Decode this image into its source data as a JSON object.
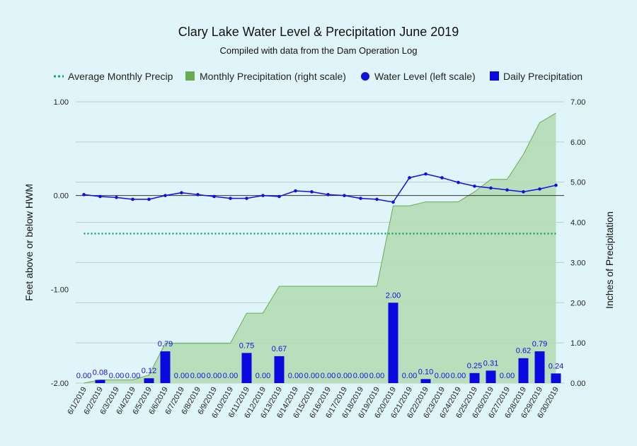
{
  "chart_data": {
    "type": "bar",
    "title": "Clary Lake Water Level & Precipitation June 2019",
    "subtitle": "Compiled with data from the Dam Operation Log",
    "ylabel_left": "Feet above or below HWM",
    "ylabel_right": "Inches of Precipitation",
    "ylim_left": [
      -2.0,
      1.0
    ],
    "ylim_right": [
      0.0,
      7.0
    ],
    "yticks_left": [
      "1.00",
      "0.00",
      "-1.00",
      "-2.00"
    ],
    "yticks_right": [
      "7.00",
      "6.00",
      "5.00",
      "4.00",
      "3.00",
      "2.00",
      "1.00",
      "0.00"
    ],
    "legend_position": "top",
    "grid": true,
    "categories": [
      "6/1/2019",
      "6/2/2019",
      "6/3/2019",
      "6/4/2019",
      "6/5/2019",
      "6/6/2019",
      "6/7/2019",
      "6/8/2019",
      "6/9/2019",
      "6/10/2019",
      "6/11/2019",
      "6/12/2019",
      "6/13/2019",
      "6/14/2019",
      "6/15/2019",
      "6/16/2019",
      "6/17/2019",
      "6/18/2019",
      "6/19/2019",
      "6/20/2019",
      "6/21/2019",
      "6/22/2019",
      "6/23/2019",
      "6/24/2019",
      "6/25/2019",
      "6/26/2019",
      "6/27/2019",
      "6/28/2019",
      "6/29/2019",
      "6/30/2019"
    ],
    "series": [
      {
        "name": "Average Monthly Precip",
        "kind": "dotted-line",
        "axis": "right",
        "color": "#1aa35a",
        "values": [
          3.72,
          3.72,
          3.72,
          3.72,
          3.72,
          3.72,
          3.72,
          3.72,
          3.72,
          3.72,
          3.72,
          3.72,
          3.72,
          3.72,
          3.72,
          3.72,
          3.72,
          3.72,
          3.72,
          3.72,
          3.72,
          3.72,
          3.72,
          3.72,
          3.72,
          3.72,
          3.72,
          3.72,
          3.72,
          3.72
        ]
      },
      {
        "name": "Monthly Precipitation (right scale)",
        "kind": "area",
        "axis": "right",
        "color": "#6aaa50",
        "values": [
          0.0,
          0.08,
          0.08,
          0.08,
          0.2,
          0.99,
          0.99,
          0.99,
          0.99,
          0.99,
          1.74,
          1.74,
          2.41,
          2.41,
          2.41,
          2.41,
          2.41,
          2.41,
          2.41,
          4.41,
          4.41,
          4.51,
          4.51,
          4.51,
          4.76,
          5.07,
          5.07,
          5.69,
          6.48,
          6.72
        ]
      },
      {
        "name": "Water Level (left scale)",
        "kind": "line",
        "axis": "left",
        "color": "#1010e0",
        "values": [
          0.01,
          -0.01,
          -0.02,
          -0.04,
          -0.04,
          0.0,
          0.03,
          0.01,
          -0.01,
          -0.03,
          -0.03,
          0.0,
          -0.01,
          0.05,
          0.04,
          0.01,
          0.0,
          -0.03,
          -0.04,
          -0.07,
          0.19,
          0.23,
          0.19,
          0.14,
          0.1,
          0.08,
          0.06,
          0.04,
          0.07,
          0.11
        ]
      },
      {
        "name": "Daily Precipitation",
        "kind": "bar",
        "axis": "right",
        "color": "#0a0ae0",
        "values": [
          0.0,
          0.08,
          0.0,
          0.0,
          0.12,
          0.79,
          0.0,
          0.0,
          0.0,
          0.0,
          0.75,
          0.0,
          0.67,
          0.0,
          0.0,
          0.0,
          0.0,
          0.0,
          0.0,
          2.0,
          0.0,
          0.1,
          0.0,
          0.0,
          0.25,
          0.31,
          0.0,
          0.62,
          0.79,
          0.24
        ],
        "labels": [
          "0.00",
          "0.08",
          "0.00",
          "0.00",
          "0.12",
          "0.79",
          "0.00",
          "0.00",
          "0.00",
          "0.00",
          "0.75",
          "0.00",
          "0.67",
          "0.00",
          "0.00",
          "0.00",
          "0.00",
          "0.00",
          "0.00",
          "2.00",
          "0.00",
          "0.10",
          "0.00",
          "0.00",
          "0.25",
          "0.31",
          "0.00",
          "0.62",
          "0.79",
          "0.24"
        ]
      }
    ]
  }
}
